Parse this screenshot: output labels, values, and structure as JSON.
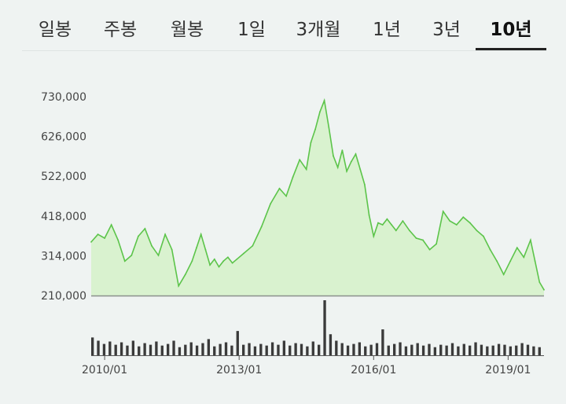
{
  "tabs": [
    {
      "label": "일봉",
      "active": false
    },
    {
      "label": "주봉",
      "active": false
    },
    {
      "label": "월봉",
      "active": false
    },
    {
      "label": "1일",
      "active": false
    },
    {
      "label": "3개월",
      "active": false
    },
    {
      "label": "1년",
      "active": false
    },
    {
      "label": "3년",
      "active": false
    },
    {
      "label": "10년",
      "active": true
    }
  ],
  "colors": {
    "line": "#5cc44a",
    "fill": "#d9f2cf",
    "volume": "#3a3a3a",
    "background": "#eff3f2"
  },
  "chart_data": [
    {
      "type": "area",
      "title": "",
      "y_tick_labels": [
        "730,000",
        "626,000",
        "522,000",
        "418,000",
        "314,000",
        "210,000"
      ],
      "y_ticks": [
        730000,
        626000,
        522000,
        418000,
        314000,
        210000
      ],
      "ylim": [
        210000,
        730000
      ],
      "x_tick_labels": [
        "2010/01",
        "2013/01",
        "2016/01",
        "2019/01"
      ],
      "x_ticks": [
        2010.0,
        2013.0,
        2016.0,
        2019.0
      ],
      "xlim": [
        2009.7,
        2019.8
      ],
      "grid": false,
      "series": [
        {
          "x": [
            2009.7,
            2009.85,
            2010.0,
            2010.15,
            2010.3,
            2010.45,
            2010.6,
            2010.75,
            2010.9,
            2011.05,
            2011.2,
            2011.35,
            2011.5,
            2011.65,
            2011.8,
            2011.95,
            2012.05,
            2012.15,
            2012.25,
            2012.35,
            2012.45,
            2012.55,
            2012.65,
            2012.75,
            2012.85,
            2012.95,
            2013.1,
            2013.3,
            2013.5,
            2013.7,
            2013.9,
            2014.05,
            2014.2,
            2014.35,
            2014.5,
            2014.6,
            2014.7,
            2014.8,
            2014.9,
            2015.0,
            2015.1,
            2015.2,
            2015.3,
            2015.4,
            2015.5,
            2015.6,
            2015.7,
            2015.8,
            2015.9,
            2016.0,
            2016.1,
            2016.2,
            2016.3,
            2016.4,
            2016.5,
            2016.65,
            2016.8,
            2016.95,
            2017.1,
            2017.25,
            2017.4,
            2017.55,
            2017.7,
            2017.85,
            2018.0,
            2018.15,
            2018.3,
            2018.45,
            2018.6,
            2018.75,
            2018.9,
            2019.05,
            2019.2,
            2019.35,
            2019.5,
            2019.6,
            2019.7,
            2019.8
          ],
          "y": [
            350000,
            370000,
            360000,
            395000,
            355000,
            300000,
            315000,
            365000,
            385000,
            340000,
            315000,
            370000,
            330000,
            235000,
            265000,
            300000,
            335000,
            370000,
            330000,
            290000,
            305000,
            285000,
            300000,
            310000,
            295000,
            305000,
            320000,
            340000,
            390000,
            450000,
            490000,
            470000,
            520000,
            565000,
            540000,
            610000,
            645000,
            690000,
            720000,
            650000,
            575000,
            545000,
            590000,
            535000,
            560000,
            580000,
            540000,
            500000,
            420000,
            365000,
            400000,
            395000,
            410000,
            395000,
            380000,
            405000,
            380000,
            360000,
            355000,
            330000,
            345000,
            430000,
            405000,
            395000,
            415000,
            400000,
            380000,
            365000,
            330000,
            300000,
            265000,
            300000,
            335000,
            310000,
            355000,
            300000,
            245000,
            225000
          ]
        }
      ],
      "volume": [
        22,
        18,
        14,
        17,
        13,
        16,
        12,
        18,
        11,
        15,
        13,
        17,
        12,
        14,
        18,
        10,
        13,
        16,
        12,
        15,
        20,
        11,
        14,
        16,
        12,
        30,
        13,
        15,
        11,
        14,
        12,
        16,
        13,
        18,
        12,
        15,
        14,
        11,
        17,
        13,
        68,
        26,
        18,
        15,
        12,
        14,
        16,
        11,
        13,
        15,
        32,
        12,
        14,
        16,
        11,
        13,
        15,
        12,
        14,
        10,
        13,
        12,
        15,
        11,
        14,
        12,
        16,
        13,
        11,
        12,
        14,
        13,
        11,
        12,
        15,
        13,
        11,
        10
      ]
    }
  ]
}
